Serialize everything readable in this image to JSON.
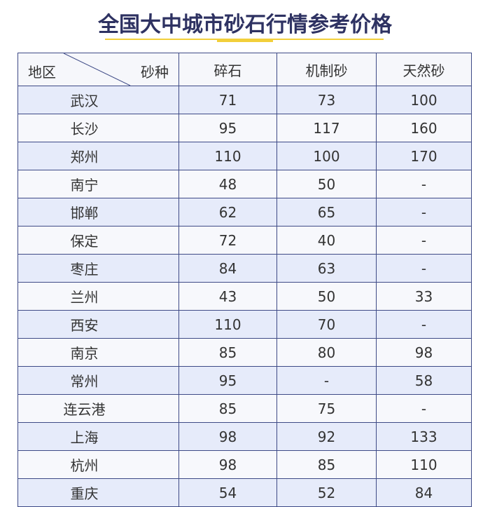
{
  "title": "全国大中城市砂石行情参考价格",
  "colors": {
    "title": "#2e3262",
    "accent_line": "#f2cf3a",
    "border": "#3e4a86",
    "row_alt": "#e6ebfa"
  },
  "table": {
    "corner": {
      "row_label": "地区",
      "col_label": "砂种"
    },
    "headers": [
      "碎石",
      "机制砂",
      "天然砂"
    ],
    "rows": [
      [
        "武汉",
        "71",
        "73",
        "100"
      ],
      [
        "长沙",
        "95",
        "117",
        "160"
      ],
      [
        "郑州",
        "110",
        "100",
        "170"
      ],
      [
        "南宁",
        "48",
        "50",
        "-"
      ],
      [
        "邯郸",
        "62",
        "65",
        "-"
      ],
      [
        "保定",
        "72",
        "40",
        "-"
      ],
      [
        "枣庄",
        "84",
        "63",
        "-"
      ],
      [
        "兰州",
        "43",
        "50",
        "33"
      ],
      [
        "西安",
        "110",
        "70",
        "-"
      ],
      [
        "南京",
        "85",
        "80",
        "98"
      ],
      [
        "常州",
        "95",
        "-",
        "58"
      ],
      [
        "连云港",
        "85",
        "75",
        "-"
      ],
      [
        "上海",
        "98",
        "92",
        "133"
      ],
      [
        "杭州",
        "98",
        "85",
        "110"
      ],
      [
        "重庆",
        "54",
        "52",
        "84"
      ]
    ]
  }
}
